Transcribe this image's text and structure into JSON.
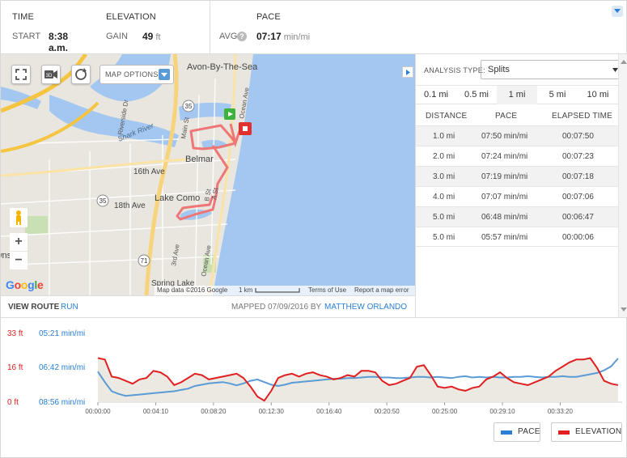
{
  "stats": {
    "time_header": "TIME",
    "start_label": "START",
    "start_value": "8:38 a.m.",
    "elevation_header": "ELEVATION",
    "gain_label": "GAIN",
    "gain_value": "49",
    "gain_unit": "ft",
    "pace_header": "PACE",
    "avg_label": "AVG",
    "avg_value": "07:17",
    "avg_unit": "min/mi"
  },
  "map": {
    "options_label": "MAP OPTIONS",
    "labels": {
      "avon": "Avon-By-The-Sea",
      "shark": "Shark River",
      "belmar": "Belmar",
      "ave16": "16th Ave",
      "ave18": "18th Ave",
      "lakecomo": "Lake Como",
      "mainst": "Main St",
      "oceanave": "Ocean Ave",
      "oceanave2": "Ocean Ave",
      "st3rd": "3rd Ave",
      "bst": "B St",
      "ast": "A St",
      "rt35a": "35",
      "rt35b": "35",
      "rt71": "71",
      "springlake": "Spring Lake",
      "township": "Township",
      "riverside": "Riverside Dr"
    },
    "google": "Google",
    "footer_data": "Map data ©2016 Google",
    "footer_scale": "1 km",
    "footer_terms": "Terms of Use",
    "footer_report": "Report a map error"
  },
  "route": {
    "view_label": "VIEW ROUTE",
    "view_link": "RUN",
    "mapped_label": "MAPPED 07/09/2016 BY",
    "mapped_by": "MATTHEW ORLANDO"
  },
  "splits": {
    "analysis_label": "ANALYSIS TYPE:",
    "analysis_value": "Splits",
    "tabs": [
      "0.1 mi",
      "0.5 mi",
      "1 mi",
      "5 mi",
      "10 mi"
    ],
    "active_tab": "1 mi",
    "headers": {
      "distance": "DISTANCE",
      "pace": "PACE",
      "elapsed": "ELAPSED TIME"
    },
    "rows": [
      {
        "distance": "1.0 mi",
        "pace": "07:50 min/mi",
        "elapsed": "00:07:50"
      },
      {
        "distance": "2.0 mi",
        "pace": "07:24 min/mi",
        "elapsed": "00:07:23"
      },
      {
        "distance": "3.0 mi",
        "pace": "07:19 min/mi",
        "elapsed": "00:07:18"
      },
      {
        "distance": "4.0 mi",
        "pace": "07:07 min/mi",
        "elapsed": "00:07:06"
      },
      {
        "distance": "5.0 mi",
        "pace": "06:48 min/mi",
        "elapsed": "00:06:47"
      },
      {
        "distance": "5.0 mi",
        "pace": "05:57 min/mi",
        "elapsed": "00:00:06"
      }
    ]
  },
  "chart_data": {
    "type": "line",
    "y_left_ticks": [
      "33 ft",
      "16 ft",
      "0 ft"
    ],
    "y_right_ticks": [
      "05:21 min/mi",
      "06:42 min/mi",
      "08:56 min/mi"
    ],
    "x_ticks": [
      "00:00:00",
      "00:04:10",
      "00:08:20",
      "00:12:30",
      "00:16:40",
      "00:20:50",
      "00:25:00",
      "00:29:10",
      "00:33:20"
    ],
    "x_range_minutes": [
      0,
      37.8
    ],
    "series": [
      {
        "name": "ELEVATION",
        "color": "#e02020",
        "unit": "ft",
        "ylim": [
          0,
          33
        ],
        "x": [
          0,
          0.5,
          1,
          1.5,
          2,
          2.5,
          3,
          3.5,
          4,
          4.5,
          5,
          5.5,
          6,
          6.5,
          7,
          7.5,
          8,
          8.5,
          9,
          9.5,
          10,
          10.5,
          11,
          11.5,
          12,
          12.5,
          13,
          13.5,
          14,
          14.5,
          15,
          15.5,
          16,
          16.5,
          17,
          17.5,
          18,
          18.5,
          19,
          19.5,
          20,
          20.5,
          21,
          21.5,
          22,
          22.5,
          23,
          23.5,
          24,
          24.5,
          25,
          25.5,
          26,
          26.5,
          27,
          27.5,
          28,
          28.5,
          29,
          29.5,
          30,
          30.5,
          31,
          31.5,
          32,
          32.5,
          33,
          33.5,
          34,
          34.5,
          35,
          35.5,
          36,
          36.5,
          37,
          37.5
        ],
        "values": [
          31,
          30,
          18,
          17,
          15,
          13,
          16,
          17,
          22,
          21,
          18,
          12,
          14,
          17,
          20,
          19,
          16,
          17,
          18,
          19,
          20,
          17,
          11,
          4,
          1,
          8,
          17,
          19,
          20,
          18,
          20,
          21,
          19,
          18,
          16,
          17,
          19,
          18,
          22,
          22,
          21,
          15,
          12,
          13,
          15,
          17,
          25,
          26,
          19,
          11,
          10,
          11,
          9,
          8,
          10,
          11,
          16,
          18,
          21,
          17,
          14,
          13,
          12,
          14,
          16,
          18,
          22,
          25,
          28,
          30,
          30,
          31,
          24,
          15,
          13,
          12
        ]
      },
      {
        "name": "PACE",
        "color": "#2a7fd4",
        "unit": "min/mi",
        "ylim_min_per_mi": [
          8.933,
          5.35
        ],
        "x": [
          0,
          0.5,
          1,
          1.5,
          2,
          2.5,
          3,
          3.5,
          4,
          4.5,
          5,
          5.5,
          6,
          6.5,
          7,
          7.5,
          8,
          8.5,
          9,
          9.5,
          10,
          10.5,
          11,
          11.5,
          12,
          12.5,
          13,
          13.5,
          14,
          14.5,
          15,
          15.5,
          16,
          16.5,
          17,
          17.5,
          18,
          18.5,
          19,
          19.5,
          20,
          20.5,
          21,
          21.5,
          22,
          22.5,
          23,
          23.5,
          24,
          24.5,
          25,
          25.5,
          26,
          26.5,
          27,
          27.5,
          28,
          28.5,
          29,
          29.5,
          30,
          30.5,
          31,
          31.5,
          32,
          32.5,
          33,
          33.5,
          34,
          34.5,
          35,
          35.5,
          36,
          36.5,
          37,
          37.5
        ],
        "values": [
          6.6,
          7.4,
          8.1,
          8.3,
          8.45,
          8.4,
          8.35,
          8.3,
          8.25,
          8.2,
          8.15,
          8.1,
          8.0,
          7.9,
          7.7,
          7.6,
          7.5,
          7.45,
          7.4,
          7.5,
          7.65,
          7.5,
          7.3,
          7.2,
          7.4,
          7.6,
          7.7,
          7.6,
          7.45,
          7.4,
          7.35,
          7.3,
          7.25,
          7.2,
          7.15,
          7.15,
          7.1,
          7.1,
          7.05,
          7.0,
          7.0,
          7.05,
          7.05,
          7.1,
          7.1,
          7.05,
          7.0,
          7.0,
          7.05,
          7.0,
          7.05,
          7.1,
          7.0,
          6.95,
          7.05,
          7.0,
          7.05,
          7.0,
          7.05,
          7.05,
          7.0,
          7.0,
          6.95,
          7.0,
          7.05,
          7.0,
          7.0,
          6.95,
          7.0,
          7.0,
          6.9,
          6.8,
          6.7,
          6.5,
          6.2,
          5.6
        ]
      }
    ],
    "legend": [
      "PACE",
      "ELEVATION"
    ],
    "legend_placement": "bottom-right",
    "grid": false
  },
  "colors": {
    "accent": "#2a7fd4",
    "elevation": "#e02020",
    "route": "#f08080",
    "water": "#a3c7f0"
  }
}
